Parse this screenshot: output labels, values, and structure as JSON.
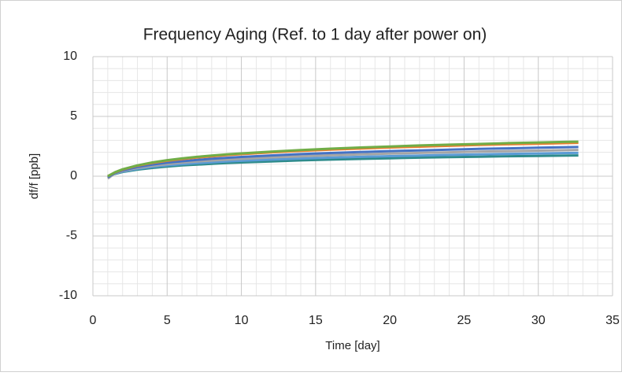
{
  "chart_data": {
    "type": "line",
    "title": "Frequency Aging (Ref. to 1 day after power on)",
    "x_label": "Time [day]",
    "y_label": "df/f [ppb]",
    "x": [
      1,
      1.5,
      2,
      3,
      4,
      5,
      6,
      7,
      8,
      9,
      10,
      12,
      14,
      16,
      18,
      20,
      22,
      24,
      26,
      28,
      30,
      32,
      32.7
    ],
    "series": [
      {
        "color": "#2e8b8b",
        "values": [
          0,
          0.2,
          0.35,
          0.55,
          0.69,
          0.8,
          0.9,
          0.97,
          1.04,
          1.1,
          1.15,
          1.24,
          1.32,
          1.39,
          1.45,
          1.5,
          1.55,
          1.59,
          1.63,
          1.67,
          1.7,
          1.73,
          1.74
        ]
      },
      {
        "color": "#5b9bd5",
        "values": [
          0,
          0.23,
          0.39,
          0.62,
          0.78,
          0.9,
          1.0,
          1.09,
          1.16,
          1.23,
          1.29,
          1.39,
          1.48,
          1.55,
          1.62,
          1.68,
          1.73,
          1.78,
          1.82,
          1.87,
          1.9,
          1.94,
          1.95
        ]
      },
      {
        "color": "#a5a5a5",
        "values": [
          -0.2,
          0.26,
          0.44,
          0.69,
          0.87,
          1.01,
          1.13,
          1.23,
          1.31,
          1.38,
          1.45,
          1.57,
          1.66,
          1.75,
          1.82,
          1.89,
          1.95,
          2.0,
          2.05,
          2.1,
          2.14,
          2.18,
          2.2
        ]
      },
      {
        "color": "#4472c4",
        "values": [
          -0.1,
          0.28,
          0.49,
          0.77,
          0.97,
          1.13,
          1.25,
          1.36,
          1.46,
          1.54,
          1.61,
          1.74,
          1.85,
          1.94,
          2.02,
          2.1,
          2.16,
          2.22,
          2.28,
          2.33,
          2.38,
          2.43,
          2.44
        ]
      },
      {
        "color": "#ed7d31",
        "values": [
          0,
          0.32,
          0.55,
          0.88,
          1.11,
          1.29,
          1.43,
          1.56,
          1.66,
          1.76,
          1.84,
          1.99,
          2.11,
          2.22,
          2.31,
          2.4,
          2.47,
          2.54,
          2.61,
          2.67,
          2.72,
          2.77,
          2.79
        ]
      },
      {
        "color": "#70ad47",
        "values": [
          0,
          0.34,
          0.58,
          0.91,
          1.15,
          1.34,
          1.49,
          1.62,
          1.73,
          1.82,
          1.91,
          2.06,
          2.19,
          2.3,
          2.4,
          2.49,
          2.57,
          2.64,
          2.7,
          2.77,
          2.82,
          2.88,
          2.89
        ]
      }
    ],
    "xlim": [
      0,
      35
    ],
    "xticks": [
      0,
      5,
      10,
      15,
      20,
      25,
      30,
      35
    ],
    "ylim": [
      -10,
      10
    ],
    "yticks": [
      -10,
      -5,
      0,
      5,
      10
    ],
    "grid": true,
    "minor_grid": true
  }
}
